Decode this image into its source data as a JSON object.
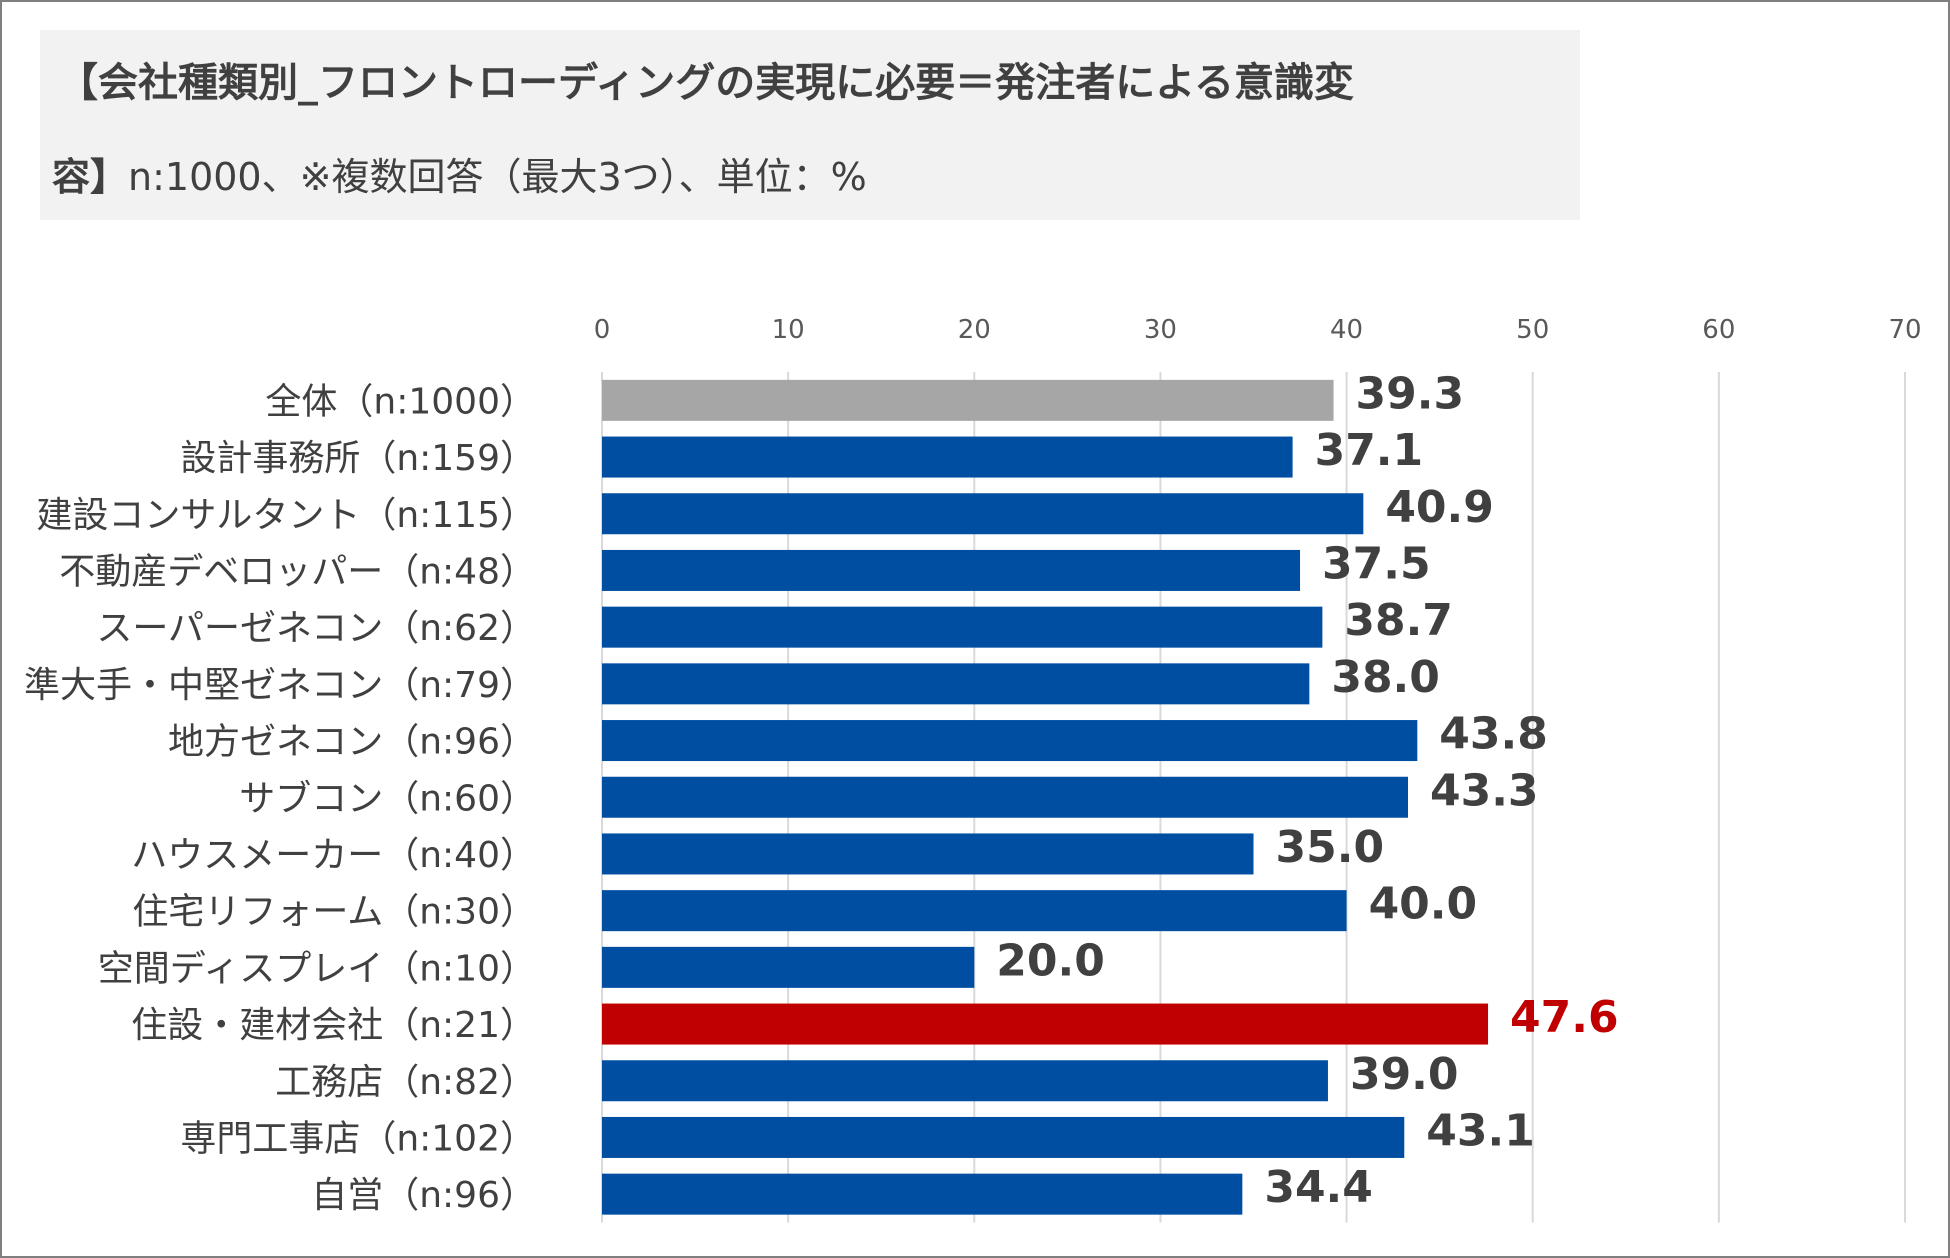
{
  "header": {
    "title_line1": "【会社種類別_フロントローディングの実現に必要＝発注者による意識変",
    "title_line2_bold": "容】",
    "title_line2_rest": "n:1000、※複数回答（最大3つ）、単位：%"
  },
  "colors": {
    "overall_bar": "#a6a6a6",
    "default_bar": "#004ea2",
    "highlight_bar": "#c00000",
    "default_label": "#404040",
    "highlight_label": "#c00000",
    "gridline": "#d9d9d9"
  },
  "chart_data": {
    "type": "bar",
    "orientation": "horizontal",
    "title": "【会社種類別_フロントローディングの実現に必要＝発注者による意識変容】n:1000、※複数回答（最大3つ）、単位：%",
    "xlim": [
      0,
      70
    ],
    "x_ticks": [
      0,
      10,
      20,
      30,
      40,
      50,
      60,
      70
    ],
    "x_axis_position": "top",
    "grid": true,
    "legend": "none",
    "categories": [
      "全体（n:1000）",
      "設計事務所（n:159）",
      "建設コンサルタント（n:115）",
      "不動産デベロッパー（n:48）",
      "スーパーゼネコン（n:62）",
      "準大手・中堅ゼネコン（n:79）",
      "地方ゼネコン（n:96）",
      "サブコン（n:60）",
      "ハウスメーカー（n:40）",
      "住宅リフォーム（n:30）",
      "空間ディスプレイ（n:10）",
      "住設・建材会社（n:21）",
      "工務店（n:82）",
      "専門工事店（n:102）",
      "自営（n:96）"
    ],
    "values": [
      39.3,
      37.1,
      40.9,
      37.5,
      38.7,
      38.0,
      43.8,
      43.3,
      35.0,
      40.0,
      20.0,
      47.6,
      39.0,
      43.1,
      34.4
    ],
    "data_labels": [
      "39.3",
      "37.1",
      "40.9",
      "37.5",
      "38.7",
      "38.0",
      "43.8",
      "43.3",
      "35.0",
      "40.0",
      "20.0",
      "47.6",
      "39.0",
      "43.1",
      "34.4"
    ],
    "bar_roles": [
      "overall",
      "default",
      "default",
      "default",
      "default",
      "default",
      "default",
      "default",
      "default",
      "default",
      "default",
      "highlight",
      "default",
      "default",
      "default"
    ]
  }
}
